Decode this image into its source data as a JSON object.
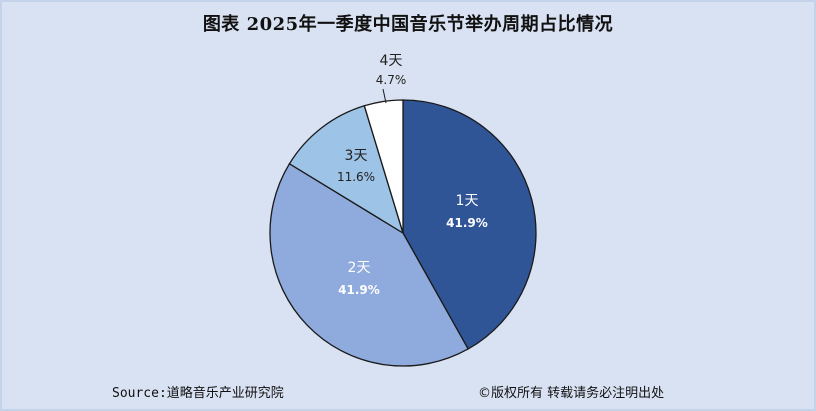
{
  "chart_data": {
    "type": "pie",
    "title": "图表 2025年一季度中国音乐节举办周期占比情况",
    "slices": [
      {
        "category": "1天",
        "percent_label": "41.9%",
        "value": 41.9,
        "color": "#2f5597"
      },
      {
        "category": "2天",
        "percent_label": "41.9%",
        "value": 41.9,
        "color": "#8faadc"
      },
      {
        "category": "3天",
        "percent_label": "11.6%",
        "value": 11.6,
        "color": "#9dc3e6"
      },
      {
        "category": "4天",
        "percent_label": "4.7%",
        "value": 4.7,
        "color": "#ffffff"
      }
    ],
    "start_angle": "12 o'clock",
    "direction": "clockwise"
  },
  "footer": {
    "source": "Source:道略音乐产业研究院",
    "copyright": "©版权所有   转载请务必注明出处"
  }
}
